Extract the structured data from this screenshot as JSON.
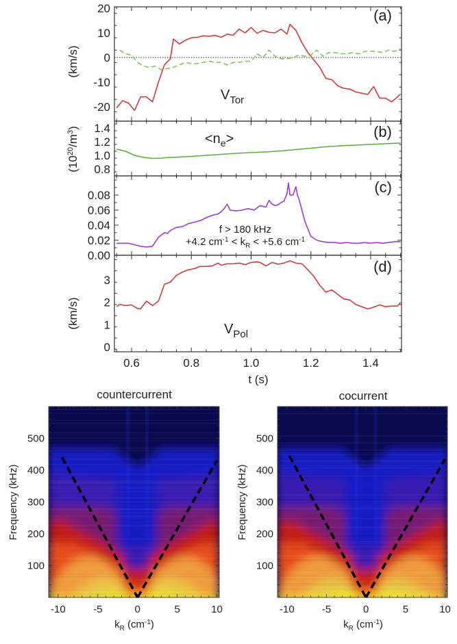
{
  "chart_data": [
    {
      "type": "line",
      "panel": "a",
      "tag": "(a)",
      "ylabel": "(km/s)",
      "annotation": {
        "main": "V",
        "sub": "Tor"
      },
      "xlim": [
        0.55,
        1.5
      ],
      "ylim": [
        -22,
        20
      ],
      "yticks": [
        20,
        10,
        0,
        -10,
        -20
      ],
      "ytick_labels": [
        "20",
        "10",
        "0",
        "-10",
        "-20"
      ],
      "reference_line": {
        "y": 0,
        "style": "dotted"
      },
      "series": [
        {
          "name": "V_Tor",
          "color": "#d03a3a",
          "style": "solid",
          "x": [
            0.55,
            0.57,
            0.59,
            0.61,
            0.63,
            0.65,
            0.67,
            0.69,
            0.71,
            0.73,
            0.74,
            0.76,
            0.78,
            0.8,
            0.82,
            0.84,
            0.86,
            0.88,
            0.9,
            0.92,
            0.94,
            0.96,
            0.98,
            1.0,
            1.02,
            1.04,
            1.06,
            1.08,
            1.1,
            1.12,
            1.13,
            1.15,
            1.17,
            1.19,
            1.21,
            1.23,
            1.25,
            1.27,
            1.29,
            1.31,
            1.33,
            1.35,
            1.37,
            1.39,
            1.41,
            1.43,
            1.45,
            1.47,
            1.49,
            1.5
          ],
          "y": [
            -20.5,
            -17.5,
            -18.5,
            -21.5,
            -16,
            -16,
            -18,
            -10,
            -3,
            -0.5,
            7.5,
            5.5,
            7,
            8,
            8.2,
            8.8,
            8.6,
            9,
            8.2,
            9.5,
            9,
            11.5,
            10,
            12.2,
            9.8,
            11,
            10.2,
            10,
            11.5,
            9.5,
            13.5,
            11,
            6,
            2,
            -1,
            -4,
            -8.5,
            -9,
            -11.5,
            -12.5,
            -12.8,
            -14,
            -14.5,
            -15,
            -11.8,
            -16.5,
            -16.5,
            -18,
            -16,
            -14.8
          ]
        },
        {
          "name": "reference (dashed)",
          "color": "#7cc75a",
          "style": "dashed",
          "x": [
            0.56,
            0.58,
            0.6,
            0.62,
            0.64,
            0.66,
            0.68,
            0.7,
            0.72,
            0.74,
            0.76,
            0.78,
            0.8,
            0.82,
            0.84,
            0.86,
            0.88,
            0.9,
            0.92,
            0.94,
            0.96,
            0.98,
            1.0,
            1.02,
            1.04,
            1.06,
            1.08,
            1.1,
            1.12,
            1.14,
            1.16,
            1.18,
            1.2,
            1.22,
            1.24,
            1.26,
            1.28,
            1.3,
            1.32,
            1.34,
            1.36,
            1.38,
            1.4,
            1.42,
            1.44,
            1.46,
            1.48,
            1.5
          ],
          "y": [
            3,
            1.5,
            1,
            -2,
            -3.5,
            -4,
            -3.5,
            -5,
            -4.5,
            -4,
            -3,
            -2,
            -2.5,
            -2.5,
            -2,
            -1.5,
            -2,
            -2,
            -3,
            -2,
            -2,
            -1.5,
            -1.5,
            1.5,
            0,
            3,
            0.5,
            -0.5,
            -0.5,
            0,
            1,
            0.5,
            1,
            3,
            0.5,
            2,
            2,
            1.5,
            1.5,
            2,
            1.5,
            2.5,
            2.5,
            2.5,
            2,
            3,
            2.5,
            3.5
          ]
        }
      ]
    },
    {
      "type": "line",
      "panel": "b",
      "tag": "(b)",
      "ylabel": "(10^20/m^3)",
      "ylabel_parts": {
        "pre": "(10",
        "sup": "20",
        "mid": "/m",
        "sup2": "3",
        "post": ")"
      },
      "annotation": {
        "pre": "<n",
        "sub": "e",
        "post": ">"
      },
      "xlim": [
        0.55,
        1.5
      ],
      "ylim": [
        0.66,
        1.5
      ],
      "yticks": [
        1.4,
        1.2,
        1.0,
        0.8
      ],
      "ytick_labels": [
        "1.4",
        "1.2",
        "1.0",
        "0.8"
      ],
      "series": [
        {
          "name": "<n_e>",
          "color": "#5aad3a",
          "style": "solid",
          "x": [
            0.55,
            0.58,
            0.61,
            0.64,
            0.67,
            0.7,
            0.73,
            0.76,
            0.8,
            0.85,
            0.9,
            0.95,
            1.0,
            1.05,
            1.1,
            1.15,
            1.2,
            1.25,
            1.3,
            1.35,
            1.4,
            1.45,
            1.5
          ],
          "y": [
            1.09,
            1.06,
            1.0,
            0.97,
            0.955,
            0.96,
            0.97,
            0.975,
            0.985,
            1.0,
            1.015,
            1.03,
            1.04,
            1.05,
            1.065,
            1.085,
            1.105,
            1.125,
            1.14,
            1.15,
            1.16,
            1.17,
            1.18
          ]
        }
      ]
    },
    {
      "type": "line",
      "panel": "c",
      "tag": "(c)",
      "ylabel": "",
      "annotation": {
        "line1": "f > 180 kHz",
        "line2_pre": "+4.2 cm",
        "line2_sup1": "-1",
        "line2_mid": " < k",
        "line2_sub": "R",
        "line2_mid2": " < +5.6 cm",
        "line2_sup2": "-1"
      },
      "xlim": [
        0.55,
        1.5
      ],
      "ylim": [
        0.0,
        0.1
      ],
      "yticks": [
        0.08,
        0.06,
        0.04,
        0.02,
        0.0
      ],
      "ytick_labels": [
        "0.08",
        "0.06",
        "0.04",
        "0.02",
        "0.00"
      ],
      "series": [
        {
          "name": "fluctuation amplitude",
          "color": "#9a3ad8",
          "style": "solid",
          "x": [
            0.55,
            0.57,
            0.59,
            0.61,
            0.63,
            0.65,
            0.67,
            0.69,
            0.71,
            0.72,
            0.73,
            0.75,
            0.77,
            0.79,
            0.81,
            0.83,
            0.85,
            0.87,
            0.89,
            0.9,
            0.91,
            0.92,
            0.93,
            0.95,
            0.97,
            0.99,
            1.01,
            1.03,
            1.05,
            1.06,
            1.07,
            1.08,
            1.09,
            1.1,
            1.11,
            1.12,
            1.125,
            1.13,
            1.14,
            1.15,
            1.155,
            1.16,
            1.17,
            1.18,
            1.19,
            1.2,
            1.22,
            1.24,
            1.26,
            1.28,
            1.3,
            1.32,
            1.34,
            1.36,
            1.38,
            1.4,
            1.42,
            1.44,
            1.46,
            1.48,
            1.5
          ],
          "y": [
            0.016,
            0.016,
            0.016,
            0.014,
            0.012,
            0.011,
            0.012,
            0.024,
            0.03,
            0.029,
            0.033,
            0.037,
            0.038,
            0.042,
            0.044,
            0.046,
            0.05,
            0.053,
            0.055,
            0.058,
            0.062,
            0.068,
            0.06,
            0.059,
            0.06,
            0.062,
            0.06,
            0.066,
            0.064,
            0.073,
            0.068,
            0.066,
            0.067,
            0.07,
            0.072,
            0.082,
            0.096,
            0.08,
            0.08,
            0.091,
            0.08,
            0.075,
            0.06,
            0.045,
            0.035,
            0.025,
            0.02,
            0.018,
            0.017,
            0.017,
            0.016,
            0.017,
            0.016,
            0.016,
            0.017,
            0.016,
            0.017,
            0.016,
            0.017,
            0.018,
            0.018
          ]
        }
      ]
    },
    {
      "type": "line",
      "panel": "d",
      "tag": "(d)",
      "ylabel": "(km/s)",
      "annotation": {
        "main": "V",
        "sub": "Pol"
      },
      "xlabel": "t (s)",
      "xlim": [
        0.55,
        1.5
      ],
      "ylim": [
        -0.1,
        3.9
      ],
      "xticks": [
        0.6,
        0.8,
        1.0,
        1.2,
        1.4
      ],
      "xtick_labels": [
        "0.6",
        "0.8",
        "1.0",
        "1.2",
        "1.4"
      ],
      "yticks": [
        3,
        2,
        1,
        0
      ],
      "ytick_labels": [
        "3",
        "2",
        "1",
        "0"
      ],
      "series": [
        {
          "name": "V_Pol",
          "color": "#d03a3a",
          "style": "solid",
          "x": [
            0.55,
            0.56,
            0.58,
            0.6,
            0.62,
            0.63,
            0.65,
            0.67,
            0.69,
            0.71,
            0.73,
            0.75,
            0.77,
            0.79,
            0.81,
            0.83,
            0.85,
            0.87,
            0.89,
            0.9,
            0.92,
            0.94,
            0.96,
            0.98,
            1.0,
            1.02,
            1.03,
            1.05,
            1.07,
            1.09,
            1.11,
            1.13,
            1.15,
            1.17,
            1.19,
            1.21,
            1.23,
            1.25,
            1.27,
            1.29,
            1.31,
            1.33,
            1.35,
            1.37,
            1.39,
            1.41,
            1.43,
            1.45,
            1.47,
            1.49,
            1.5
          ],
          "y": [
            1.8,
            1.9,
            1.85,
            1.88,
            1.72,
            1.7,
            2.05,
            1.85,
            2.05,
            2.8,
            2.9,
            3.2,
            3.35,
            3.45,
            3.5,
            3.6,
            3.6,
            3.62,
            3.75,
            3.65,
            3.72,
            3.72,
            3.75,
            3.68,
            3.78,
            3.8,
            3.78,
            3.62,
            3.78,
            3.7,
            3.75,
            3.85,
            3.75,
            3.72,
            3.45,
            3.15,
            2.75,
            2.45,
            2.55,
            2.35,
            2.15,
            2.1,
            1.9,
            1.8,
            1.7,
            1.78,
            1.88,
            1.8,
            1.83,
            1.83,
            2.0
          ]
        }
      ]
    },
    {
      "type": "heatmap",
      "panel": "countercurrent",
      "title": "countercurrent",
      "xlabel": "k_R (cm^-1)",
      "xlabel_parts": {
        "pre": "k",
        "sub": "R",
        "mid": " (cm",
        "sup": "-1",
        "post": ")"
      },
      "ylabel": "Frequency (kHz)",
      "xlim": [
        -11.2,
        10.3
      ],
      "ylim": [
        0,
        600
      ],
      "xticks": [
        -10,
        -5,
        0,
        5,
        10
      ],
      "xtick_labels": [
        "-10",
        "-5",
        "0",
        "5",
        "10"
      ],
      "yticks": [
        100,
        200,
        300,
        400,
        500
      ],
      "ytick_labels": [
        "100",
        "200",
        "300",
        "400",
        "500"
      ],
      "colormap": [
        "#0a0a50",
        "#1a22d8",
        "#3a1ab0",
        "#7a1a70",
        "#c81a10",
        "#e8501a",
        "#f0a040",
        "#e8c848",
        "#f0f020"
      ],
      "dashed_lines": [
        {
          "x": [
            -9.5,
            0
          ],
          "y": [
            440,
            0
          ]
        },
        {
          "x": [
            0,
            10
          ],
          "y": [
            0,
            430
          ]
        }
      ],
      "description": "Spectral power S(k_R, f): bright (yellow) at low frequency near |k_R|~3, red band below ~200 kHz widening with |k|, blue/dark at high frequency; blue channel near k_R≈0 extends down to ~50 kHz."
    },
    {
      "type": "heatmap",
      "panel": "cocurrent",
      "title": "cocurrent",
      "xlabel": "k_R (cm^-1)",
      "xlabel_parts": {
        "pre": "k",
        "sub": "R",
        "mid": " (cm",
        "sup": "-1",
        "post": ")"
      },
      "ylabel": "Frequency (kHz)",
      "xlim": [
        -11.2,
        10.3
      ],
      "ylim": [
        0,
        600
      ],
      "xticks": [
        -10,
        -5,
        0,
        5,
        10
      ],
      "xtick_labels": [
        "-10",
        "-5",
        "0",
        "5",
        "10"
      ],
      "yticks": [
        100,
        200,
        300,
        400,
        500
      ],
      "ytick_labels": [
        "100",
        "200",
        "300",
        "400",
        "500"
      ],
      "colormap": [
        "#0a0a50",
        "#1a22d8",
        "#3a1ab0",
        "#7a1a70",
        "#c81a10",
        "#e8501a",
        "#f0a040",
        "#e8c848",
        "#f0f020"
      ],
      "dashed_lines": [
        {
          "x": [
            -9.7,
            0
          ],
          "y": [
            445,
            0
          ]
        },
        {
          "x": [
            0,
            10
          ],
          "y": [
            0,
            435
          ]
        }
      ],
      "description": "Similar spectrum with a narrower blue V-shaped region following the dashed lines; red/orange band below ~250 kHz at large |k|."
    }
  ],
  "shared_xlabel": "t (s)"
}
